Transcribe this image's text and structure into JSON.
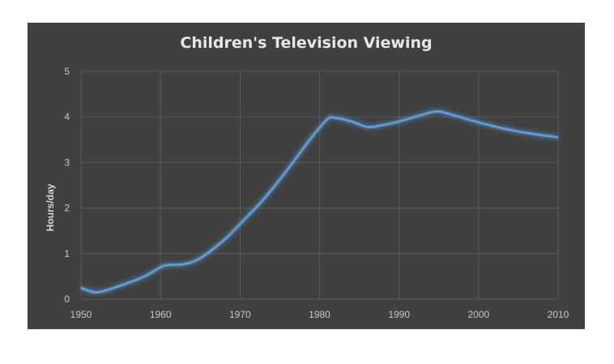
{
  "chart_data": {
    "type": "line",
    "title": "Children's Television Viewing",
    "xlabel": "",
    "ylabel": "Hours/day",
    "xlim": [
      1950,
      2010
    ],
    "ylim": [
      0,
      5
    ],
    "x_ticks": [
      1950,
      1960,
      1970,
      1980,
      1990,
      2000,
      2010
    ],
    "y_ticks": [
      0,
      1,
      2,
      3,
      4,
      5
    ],
    "grid": true,
    "legend": "none",
    "series": [
      {
        "color": "#5b9bd5",
        "x": [
          1950,
          1952,
          1955,
          1958,
          1960,
          1961,
          1963,
          1965,
          1968,
          1970,
          1973,
          1976,
          1979,
          1981,
          1982,
          1984,
          1986,
          1988,
          1990,
          1992,
          1994,
          1995,
          1996,
          1998,
          2000,
          2003,
          2006,
          2010
        ],
        "y": [
          0.25,
          0.15,
          0.3,
          0.5,
          0.7,
          0.75,
          0.77,
          0.9,
          1.3,
          1.65,
          2.2,
          2.85,
          3.55,
          3.95,
          3.98,
          3.9,
          3.78,
          3.82,
          3.9,
          4.0,
          4.1,
          4.12,
          4.08,
          3.98,
          3.88,
          3.75,
          3.65,
          3.55
        ]
      }
    ]
  }
}
